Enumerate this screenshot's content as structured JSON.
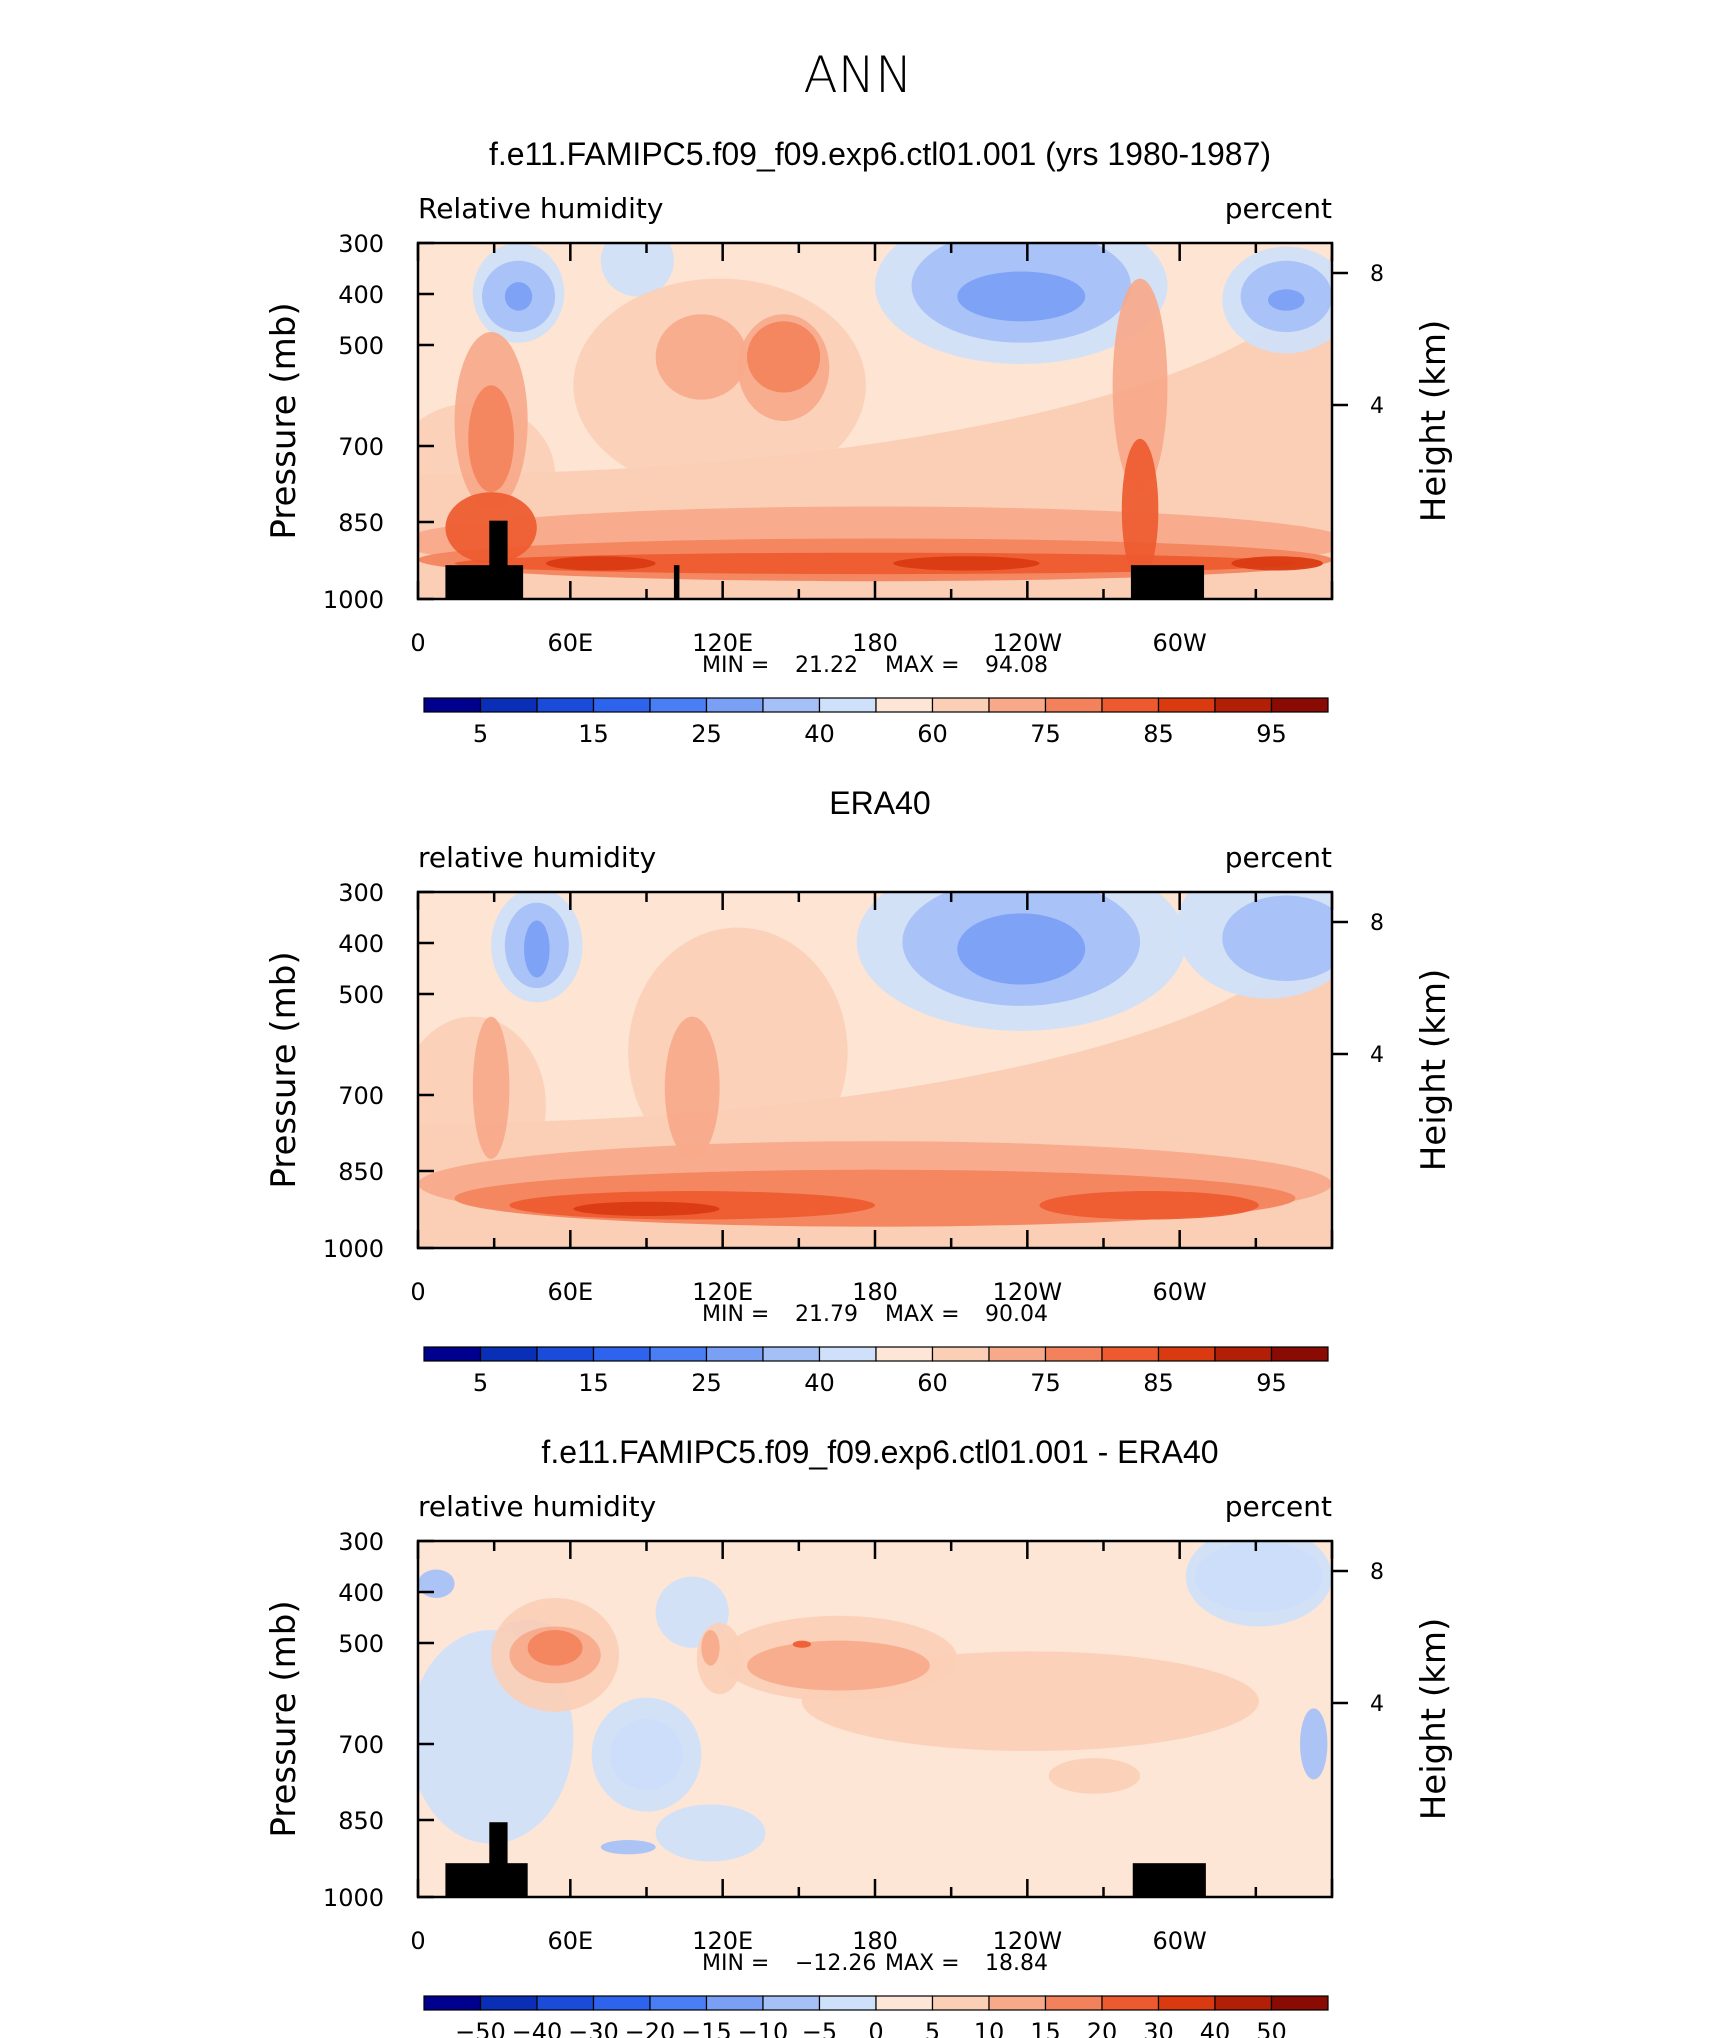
{
  "page_title": "ANN",
  "chart_data": [
    {
      "type": "heatmap",
      "title": "f.e11.FAMIPC5.f09_f09.exp6.ctl01.001 (yrs 1980-1987)",
      "left_label": "Relative humidity",
      "right_label": "percent",
      "ylabel": "Pressure (mb)",
      "ylabel_right": "Height (km)",
      "yticks": [
        "300",
        "400",
        "500",
        "700",
        "850",
        "1000"
      ],
      "yticks_right": [
        "8",
        "4"
      ],
      "xticks": [
        "0",
        "60E",
        "120E",
        "180",
        "120W",
        "60W"
      ],
      "stats": {
        "min_label": "MIN =",
        "min": "21.22",
        "max_label": "MAX =",
        "max": "94.08"
      },
      "colorbar_labels": [
        "5",
        "15",
        "25",
        "40",
        "60",
        "75",
        "85",
        "95"
      ],
      "masked": true
    },
    {
      "type": "heatmap",
      "title": "ERA40",
      "left_label": "relative humidity",
      "right_label": "percent",
      "ylabel": "Pressure (mb)",
      "ylabel_right": "Height (km)",
      "yticks": [
        "300",
        "400",
        "500",
        "700",
        "850",
        "1000"
      ],
      "yticks_right": [
        "8",
        "4"
      ],
      "xticks": [
        "0",
        "60E",
        "120E",
        "180",
        "120W",
        "60W"
      ],
      "stats": {
        "min_label": "MIN =",
        "min": "21.79",
        "max_label": "MAX =",
        "max": "90.04"
      },
      "colorbar_labels": [
        "5",
        "15",
        "25",
        "40",
        "60",
        "75",
        "85",
        "95"
      ],
      "masked": false
    },
    {
      "type": "heatmap",
      "title": "f.e11.FAMIPC5.f09_f09.exp6.ctl01.001 - ERA40",
      "left_label": "relative humidity",
      "right_label": "percent",
      "ylabel": "Pressure (mb)",
      "ylabel_right": "Height (km)",
      "yticks": [
        "300",
        "400",
        "500",
        "700",
        "850",
        "1000"
      ],
      "yticks_right": [
        "8",
        "4"
      ],
      "xticks": [
        "0",
        "60E",
        "120E",
        "180",
        "120W",
        "60W"
      ],
      "stats": {
        "min_label": "MIN =",
        "min": "−12.26",
        "max_label": "MAX =",
        "max": "18.84"
      },
      "colorbar_labels": [
        "−50",
        "−40",
        "−30",
        "−20",
        "−15",
        "−10",
        "−5",
        "0",
        "5",
        "10",
        "15",
        "20",
        "30",
        "40",
        "50"
      ],
      "masked": true
    }
  ],
  "colors": {
    "palette": [
      "#00008f",
      "#0a2fb7",
      "#1a4bd9",
      "#2e63ee",
      "#4a7ef4",
      "#7aa0f5",
      "#a5c0f7",
      "#cfe1fa",
      "#fde6d6",
      "#fbcfb6",
      "#f7a98a",
      "#f3825c",
      "#ee5a2f",
      "#d93a10",
      "#b01f06",
      "#8a0b03"
    ],
    "mask": "#000000"
  }
}
